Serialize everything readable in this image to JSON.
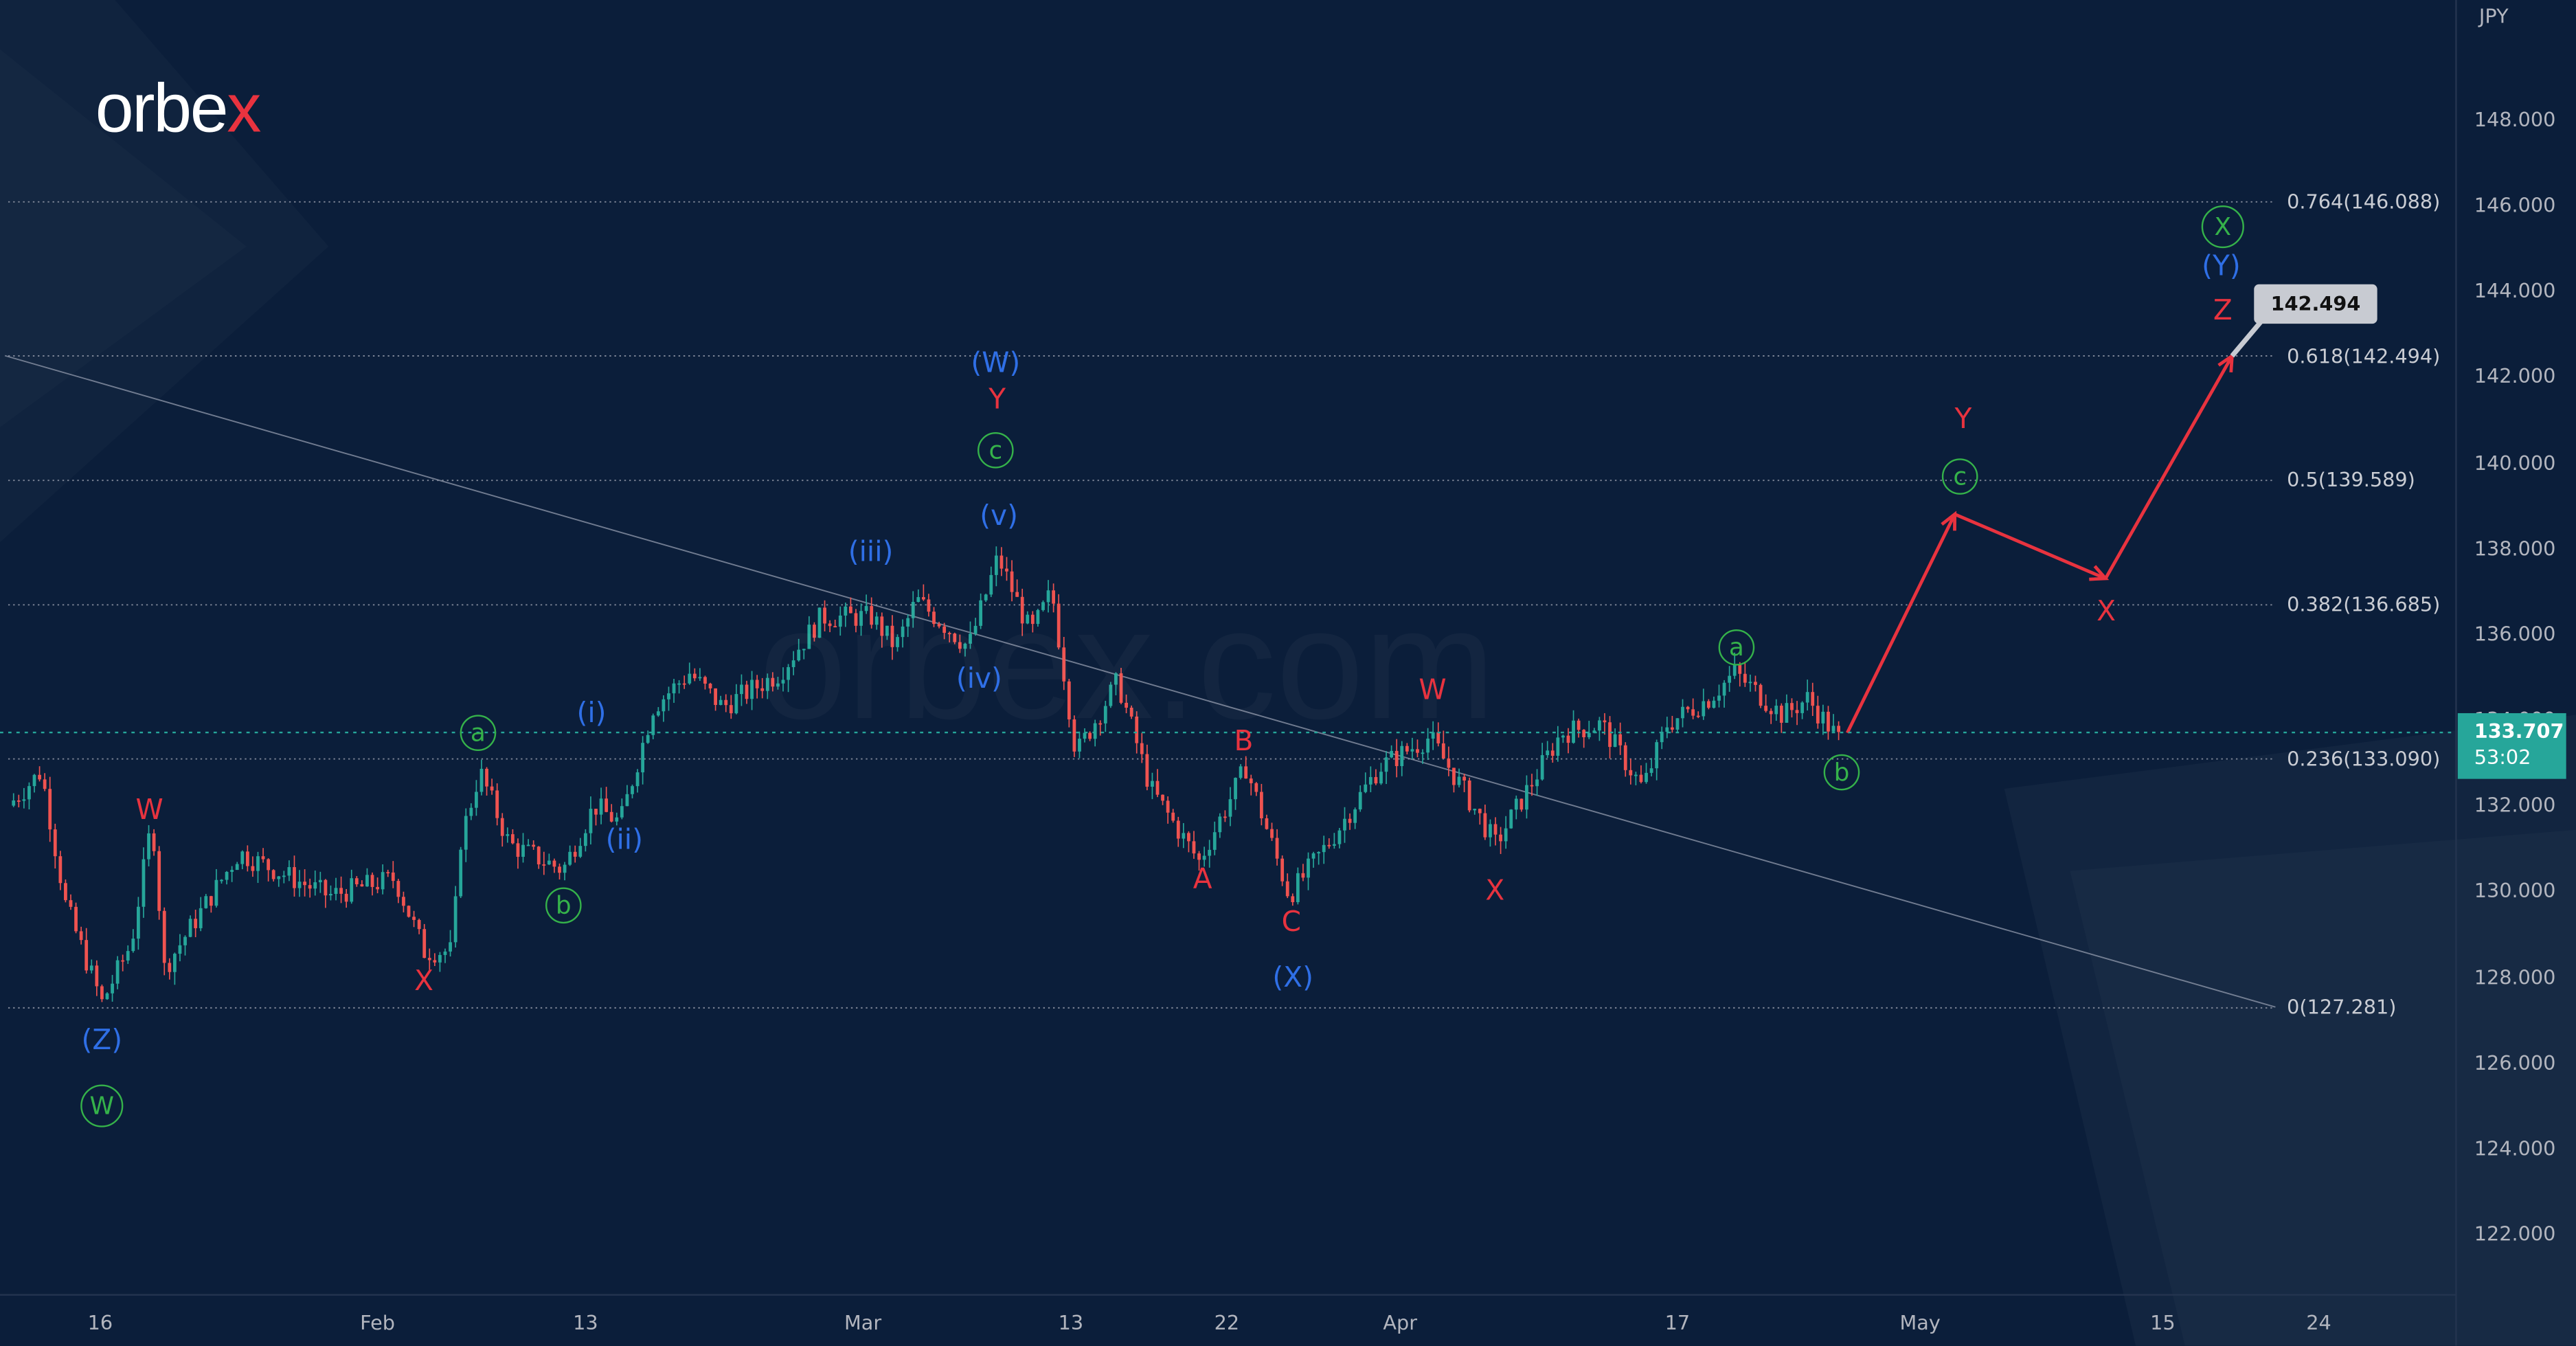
{
  "logo": {
    "text_main": "orbe",
    "text_accent": "x"
  },
  "watermark": "orbex.com",
  "currency": "JPY",
  "current_price": {
    "value": "133.707",
    "countdown": "53:02",
    "price": 133.707
  },
  "callout": "142.494",
  "colors": {
    "bg": "#0b1e3a",
    "up": "#26a69a",
    "down": "#ef5350",
    "projection": "#e8333f",
    "wave_blue": "#2f6fe6",
    "wave_red": "#e8333f",
    "wave_green": "#35b24a"
  },
  "chart_data": {
    "type": "candlestick",
    "x_unit": "day of year 2023",
    "ylim": [
      121,
      149.5
    ],
    "y_ticks": [
      148,
      146,
      144,
      142,
      140,
      138,
      136,
      134,
      132,
      130,
      128,
      126,
      124,
      122
    ],
    "y_tick_labels": [
      "148.000",
      "146.000",
      "144.000",
      "142.000",
      "140.000",
      "138.000",
      "136.000",
      "134.000",
      "132.000",
      "130.000",
      "128.000",
      "126.000",
      "124.000",
      "122.000"
    ],
    "x_ticks": [
      {
        "t": 16,
        "label": "16"
      },
      {
        "t": 32,
        "label": "Feb"
      },
      {
        "t": 44,
        "label": "13"
      },
      {
        "t": 60,
        "label": "Mar"
      },
      {
        "t": 72,
        "label": "13"
      },
      {
        "t": 81,
        "label": "22"
      },
      {
        "t": 91,
        "label": "Apr"
      },
      {
        "t": 107,
        "label": "17"
      },
      {
        "t": 121,
        "label": "May"
      },
      {
        "t": 135,
        "label": "15"
      },
      {
        "t": 144,
        "label": "24"
      }
    ],
    "price_path": [
      [
        10.7,
        132.0
      ],
      [
        12.6,
        132.8
      ],
      [
        14.0,
        129.7
      ],
      [
        16.1,
        127.4
      ],
      [
        17.8,
        128.8
      ],
      [
        19.0,
        131.7
      ],
      [
        19.7,
        128.2
      ],
      [
        24.0,
        130.9
      ],
      [
        29.2,
        129.9
      ],
      [
        33.0,
        130.3
      ],
      [
        34.7,
        128.6
      ],
      [
        36.3,
        128.6
      ],
      [
        36.8,
        131.2
      ],
      [
        37.9,
        132.8
      ],
      [
        39.6,
        131.1
      ],
      [
        42.7,
        130.5
      ],
      [
        44.5,
        132.0
      ],
      [
        46.0,
        131.6
      ],
      [
        47.9,
        134.3
      ],
      [
        50.0,
        135.1
      ],
      [
        51.9,
        134.3
      ],
      [
        55.2,
        135.1
      ],
      [
        57.6,
        136.4
      ],
      [
        60.5,
        136.4
      ],
      [
        61.9,
        135.7
      ],
      [
        63.1,
        136.8
      ],
      [
        66.1,
        135.7
      ],
      [
        67.8,
        137.8
      ],
      [
        69.7,
        136.0
      ],
      [
        70.9,
        137.0
      ],
      [
        72.3,
        133.2
      ],
      [
        74.7,
        134.9
      ],
      [
        76.6,
        132.4
      ],
      [
        79.4,
        130.7
      ],
      [
        82.1,
        132.9
      ],
      [
        84.6,
        129.9
      ],
      [
        87.0,
        131.2
      ],
      [
        89.8,
        132.9
      ],
      [
        92.7,
        133.6
      ],
      [
        94.6,
        132.4
      ],
      [
        96.5,
        131.1
      ],
      [
        100.3,
        133.7
      ],
      [
        102.6,
        133.9
      ],
      [
        105.0,
        132.4
      ],
      [
        106.4,
        133.9
      ],
      [
        108.8,
        134.5
      ],
      [
        110.3,
        135.1
      ],
      [
        113.1,
        134.1
      ],
      [
        114.5,
        134.5
      ],
      [
        116.4,
        133.5
      ]
    ],
    "projection": [
      [
        116.8,
        133.7
      ],
      [
        123.0,
        138.8
      ],
      [
        131.7,
        137.3
      ],
      [
        139.0,
        142.494
      ]
    ],
    "trendline": [
      [
        10.5,
        142.5
      ],
      [
        141.5,
        127.3
      ]
    ],
    "fib_levels": [
      {
        "price": 146.088,
        "label": "0.764(146.088)"
      },
      {
        "price": 142.494,
        "label": "0.618(142.494)"
      },
      {
        "price": 139.589,
        "label": "0.5(139.589)"
      },
      {
        "price": 136.685,
        "label": "0.382(136.685)"
      },
      {
        "price": 133.09,
        "label": "0.236(133.090)"
      },
      {
        "price": 127.281,
        "label": "0(127.281)"
      }
    ]
  },
  "waves": {
    "blue": [
      "(Z)",
      "(W)",
      "(i)",
      "(ii)",
      "(iii)",
      "(iv)",
      "(v)",
      "(X)",
      "(Y)"
    ],
    "red": [
      "W",
      "X",
      "Y",
      "A",
      "B",
      "C",
      "W",
      "X",
      "Y",
      "X",
      "Z"
    ],
    "green": [
      "W",
      "a",
      "b",
      "c",
      "a",
      "b",
      "c",
      "X"
    ]
  }
}
